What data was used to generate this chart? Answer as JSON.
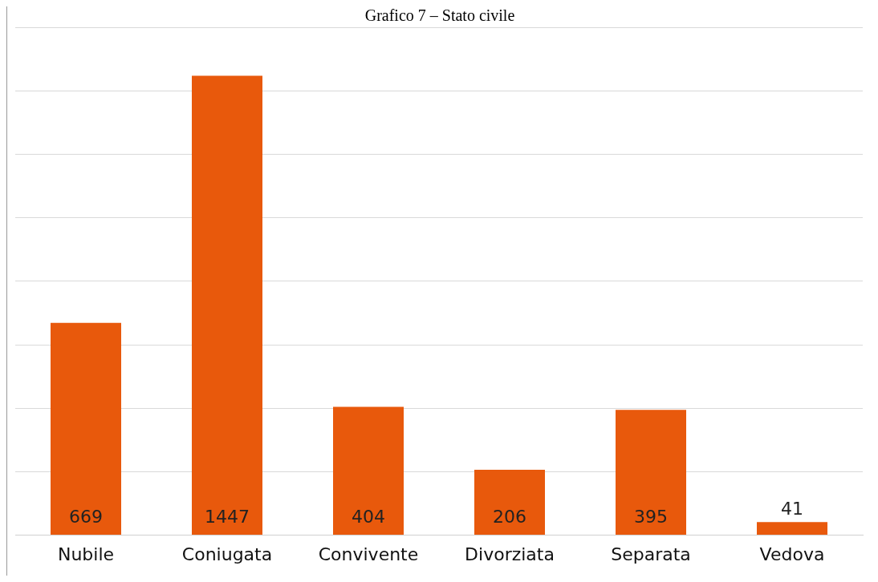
{
  "chart_data": {
    "type": "bar",
    "title": "Grafico 7 – Stato civile",
    "categories": [
      "Nubile",
      "Coniugata",
      "Convivente",
      "Divorziata",
      "Separata",
      "Vedova"
    ],
    "values": [
      669,
      1447,
      404,
      206,
      395,
      41
    ],
    "color": "#e8590c",
    "grid": "y",
    "data_labels": true,
    "legend": false
  }
}
